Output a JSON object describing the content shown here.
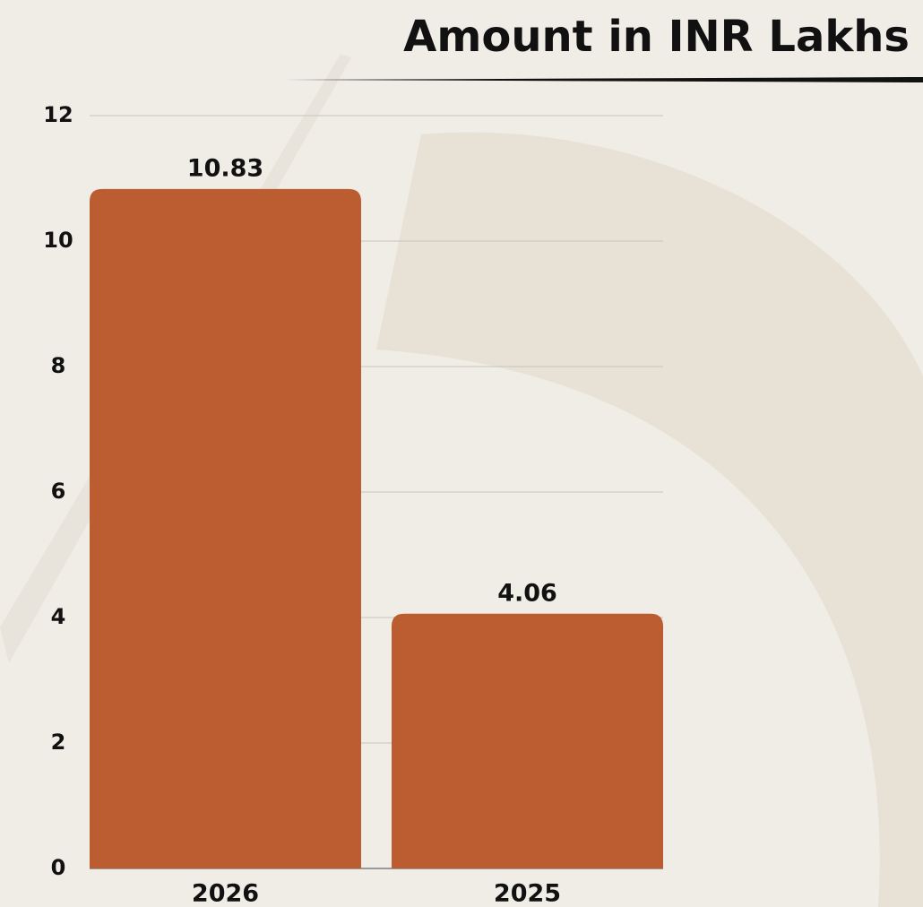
{
  "chart_data": {
    "type": "bar",
    "title": "Amount in INR Lakhs",
    "categories": [
      "2026",
      "2025"
    ],
    "values": [
      10.83,
      4.06
    ],
    "color": "#bb5c31",
    "ylim": [
      0,
      12
    ],
    "yticks": [
      0,
      2,
      4,
      6,
      8,
      10,
      12
    ],
    "grid": true
  }
}
